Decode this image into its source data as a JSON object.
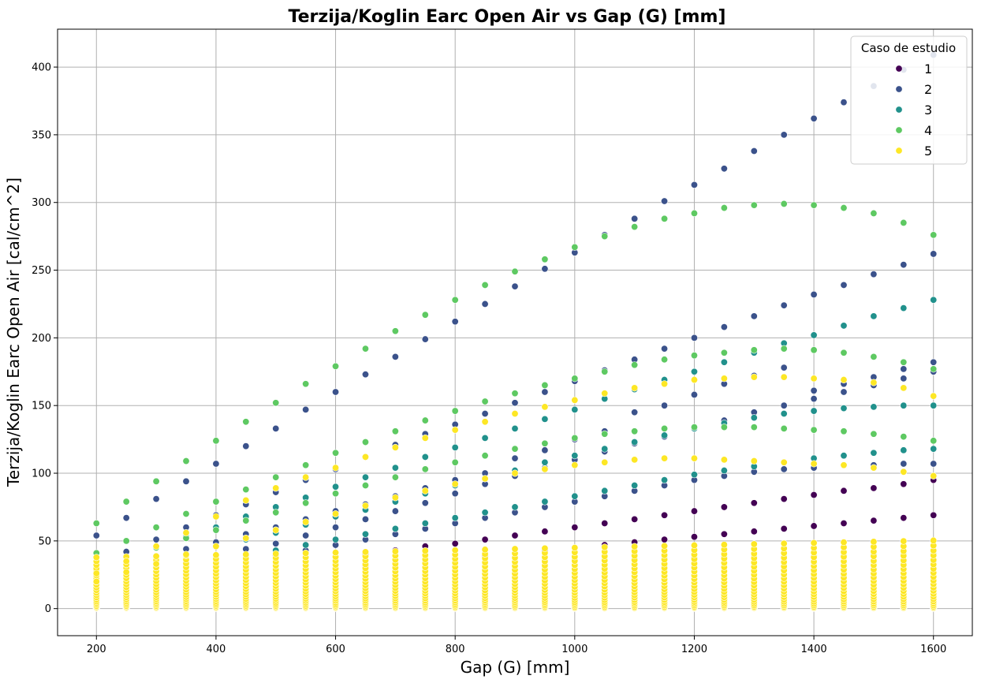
{
  "chart_data": {
    "type": "scatter",
    "title": "Terzija/Koglin Earc Open Air vs Gap (G) [mm]",
    "xlabel": "Gap (G) [mm]",
    "ylabel": "Terzija/Koglin Earc Open Air [cal/cm^2]",
    "xlim": [
      135,
      1665
    ],
    "ylim": [
      -20,
      428
    ],
    "xticks": [
      200,
      400,
      600,
      800,
      1000,
      1200,
      1400,
      1600
    ],
    "yticks": [
      0,
      50,
      100,
      150,
      200,
      250,
      300,
      350,
      400
    ],
    "grid": true,
    "legend": {
      "title": "Caso de estudio",
      "placement": "top-right"
    },
    "x_values": [
      200,
      250,
      300,
      350,
      400,
      450,
      500,
      550,
      600,
      650,
      700,
      750,
      800,
      850,
      900,
      950,
      1000,
      1050,
      1100,
      1150,
      1200,
      1250,
      1300,
      1350,
      1400,
      1450,
      1500,
      1550,
      1600
    ],
    "series": [
      {
        "name": "1",
        "color": "#440154",
        "upper_curves": [
          [
            18,
            19,
            22,
            25,
            27,
            30,
            33,
            35,
            38,
            40,
            43,
            46,
            48,
            51,
            54,
            57,
            60,
            63,
            66,
            69,
            72,
            75,
            78,
            81,
            84,
            87,
            89,
            92,
            95
          ],
          [
            14,
            15,
            17,
            19,
            21,
            23,
            25,
            27,
            29,
            31,
            33,
            35,
            37,
            39,
            41,
            43,
            45,
            47,
            49,
            51,
            53,
            55,
            57,
            59,
            61,
            63,
            65,
            67,
            69
          ]
        ],
        "low_band_max": 20,
        "low_band_count": 10
      },
      {
        "name": "2",
        "color": "#3b528b",
        "upper_curves": [
          [
            54,
            67,
            81,
            94,
            107,
            120,
            133,
            147,
            160,
            173,
            186,
            199,
            212,
            225,
            238,
            251,
            263,
            276,
            288,
            301,
            313,
            325,
            338,
            350,
            362,
            374,
            386,
            398,
            409
          ],
          [
            35,
            42,
            51,
            60,
            69,
            77,
            86,
            95,
            103,
            112,
            121,
            129,
            136,
            144,
            152,
            160,
            168,
            176,
            184,
            192,
            200,
            208,
            216,
            224,
            232,
            239,
            247,
            254,
            262
          ],
          [
            28,
            33,
            38,
            44,
            49,
            55,
            60,
            66,
            72,
            77,
            83,
            89,
            95,
            100,
            111,
            117,
            125,
            131,
            145,
            150,
            158,
            166,
            172,
            178,
            161,
            166,
            171,
            177,
            182
          ],
          [
            22,
            26,
            30,
            34,
            39,
            44,
            48,
            54,
            60,
            66,
            72,
            78,
            85,
            92,
            98,
            104,
            110,
            116,
            122,
            127,
            133,
            139,
            145,
            150,
            155,
            160,
            165,
            170,
            175
          ],
          [
            16,
            19,
            23,
            27,
            31,
            35,
            39,
            43,
            47,
            51,
            55,
            59,
            63,
            67,
            71,
            75,
            79,
            83,
            87,
            91,
            95,
            98,
            101,
            103,
            104,
            106,
            106,
            107,
            107
          ]
        ],
        "low_band_max": 35,
        "low_band_count": 12
      },
      {
        "name": "3",
        "color": "#21918c",
        "upper_curves": [
          [
            32,
            38,
            45,
            53,
            60,
            68,
            75,
            82,
            90,
            97,
            104,
            112,
            119,
            126,
            133,
            140,
            147,
            155,
            162,
            169,
            175,
            182,
            189,
            196,
            202,
            209,
            216,
            222,
            228
          ],
          [
            26,
            30,
            35,
            40,
            46,
            51,
            56,
            62,
            68,
            73,
            79,
            85,
            91,
            96,
            102,
            108,
            113,
            118,
            123,
            128,
            133,
            137,
            141,
            144,
            146,
            148,
            149,
            150,
            150
          ],
          [
            20,
            23,
            27,
            31,
            35,
            39,
            43,
            47,
            51,
            55,
            59,
            63,
            67,
            71,
            75,
            79,
            83,
            87,
            91,
            95,
            99,
            102,
            105,
            108,
            111,
            113,
            115,
            117,
            118
          ]
        ],
        "low_band_max": 30,
        "low_band_count": 11
      },
      {
        "name": "4",
        "color": "#5ec962",
        "upper_curves": [
          [
            63,
            79,
            94,
            109,
            124,
            138,
            152,
            166,
            179,
            192,
            205,
            217,
            228,
            239,
            249,
            258,
            267,
            275,
            282,
            288,
            292,
            296,
            298,
            299,
            298,
            296,
            292,
            285,
            276
          ],
          [
            41,
            50,
            60,
            70,
            79,
            88,
            97,
            106,
            115,
            123,
            131,
            139,
            146,
            153,
            159,
            165,
            170,
            175,
            180,
            184,
            187,
            189,
            191,
            192,
            191,
            189,
            186,
            182,
            177
          ],
          [
            32,
            38,
            45,
            52,
            58,
            65,
            71,
            78,
            85,
            91,
            97,
            103,
            108,
            113,
            118,
            122,
            126,
            129,
            131,
            133,
            134,
            134,
            134,
            133,
            132,
            131,
            129,
            127,
            124
          ]
        ],
        "low_band_max": 40,
        "low_band_count": 13
      },
      {
        "name": "5",
        "color": "#fde725",
        "upper_curves": [
          [
            26,
            35,
            46,
            56,
            68,
            80,
            89,
            97,
            104,
            112,
            119,
            126,
            132,
            138,
            144,
            149,
            154,
            159,
            163,
            166,
            169,
            170,
            171,
            171,
            170,
            169,
            167,
            163,
            157
          ],
          [
            20,
            27,
            33,
            40,
            46,
            52,
            58,
            64,
            70,
            76,
            82,
            87,
            92,
            96,
            100,
            103,
            106,
            108,
            110,
            111,
            111,
            110,
            109,
            108,
            107,
            106,
            104,
            101,
            98
          ]
        ],
        "low_band_max": 50,
        "low_band_count": 22
      }
    ]
  }
}
